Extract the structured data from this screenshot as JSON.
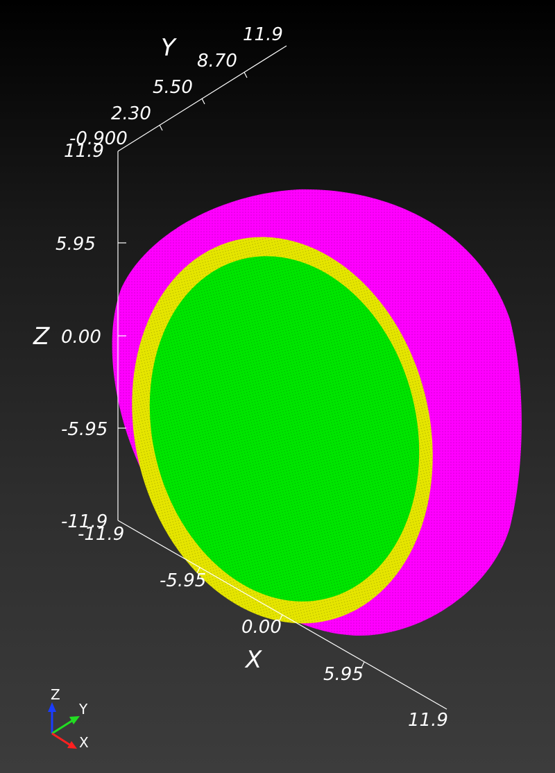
{
  "axes": {
    "x": {
      "title": "X",
      "ticks": [
        "-11.9",
        "-5.95",
        "0.00",
        "5.95",
        "11.9"
      ]
    },
    "y": {
      "title": "Y",
      "ticks": [
        "-0.900",
        "2.30",
        "5.50",
        "8.70",
        "11.9"
      ]
    },
    "z": {
      "title": "Z",
      "ticks": [
        "11.9",
        "5.95",
        "0.00",
        "-5.95",
        "-11.9"
      ]
    }
  },
  "orientation_triad": {
    "z": "Z",
    "y": "Y",
    "x": "X"
  },
  "colors": {
    "outer_shell": "#ff00ff",
    "middle_ring": "#e6e600",
    "inner_core": "#00e600",
    "background_top": "#000000",
    "background_bottom": "#3c3c3c"
  }
}
